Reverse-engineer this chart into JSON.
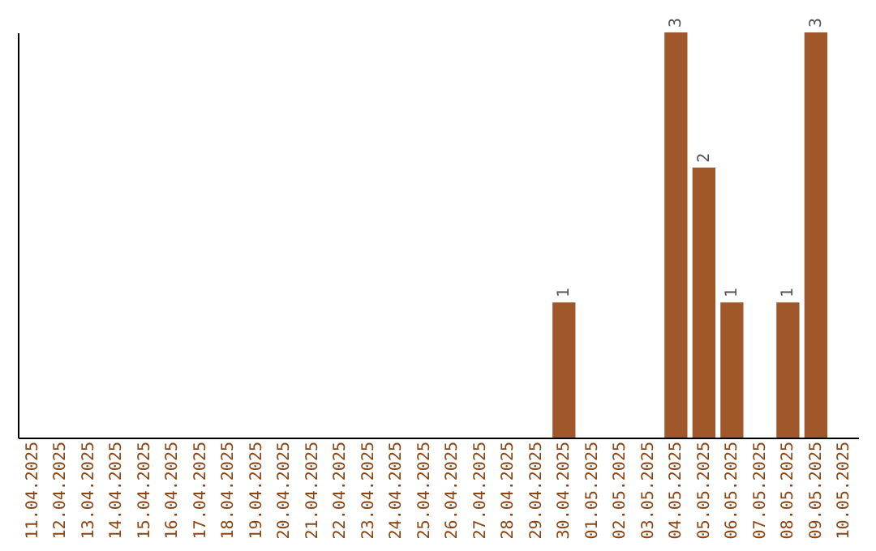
{
  "chart_data": {
    "type": "bar",
    "categories": [
      "11.04.2025",
      "12.04.2025",
      "13.04.2025",
      "14.04.2025",
      "15.04.2025",
      "16.04.2025",
      "17.04.2025",
      "18.04.2025",
      "19.04.2025",
      "20.04.2025",
      "21.04.2025",
      "22.04.2025",
      "23.04.2025",
      "24.04.2025",
      "25.04.2025",
      "26.04.2025",
      "27.04.2025",
      "28.04.2025",
      "29.04.2025",
      "30.04.2025",
      "01.05.2025",
      "02.05.2025",
      "03.05.2025",
      "04.05.2025",
      "05.05.2025",
      "06.05.2025",
      "07.05.2025",
      "08.05.2025",
      "09.05.2025",
      "10.05.2025"
    ],
    "values": [
      null,
      null,
      null,
      null,
      null,
      null,
      null,
      null,
      null,
      null,
      null,
      null,
      null,
      null,
      null,
      null,
      null,
      null,
      null,
      1,
      null,
      null,
      null,
      3,
      2,
      1,
      null,
      1,
      3,
      null
    ],
    "color": "#a0572a",
    "data_labels": true,
    "grid": false,
    "tick_labels": "x"
  }
}
